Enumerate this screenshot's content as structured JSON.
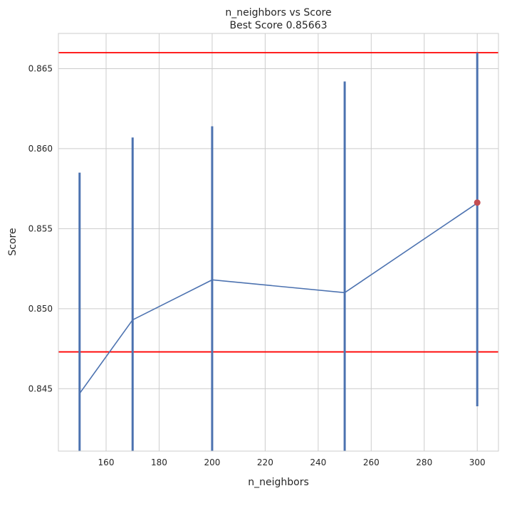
{
  "chart_data": {
    "type": "line",
    "title": "n_neighbors vs Score",
    "subtitle": "Best Score 0.85663",
    "xlabel": "n_neighbors",
    "ylabel": "Score",
    "xlim": [
      142,
      308
    ],
    "ylim": [
      0.8411,
      0.8672
    ],
    "x_ticks": [
      160,
      180,
      200,
      220,
      240,
      260,
      280,
      300
    ],
    "y_ticks": [
      0.845,
      0.85,
      0.855,
      0.86,
      0.865
    ],
    "y_tick_labels": [
      "0.845",
      "0.850",
      "0.855",
      "0.860",
      "0.865"
    ],
    "grid": true,
    "series": [
      {
        "x": [
          150,
          170,
          200,
          250,
          300
        ],
        "y": [
          0.8447,
          0.8493,
          0.8518,
          0.851,
          0.8566
        ],
        "color": "#4C72B0",
        "error_range": [
          [
            0.8411,
            0.8585
          ],
          [
            0.8411,
            0.8607
          ],
          [
            0.8411,
            0.8614
          ],
          [
            0.8411,
            0.8642
          ],
          [
            0.8439,
            0.866
          ]
        ]
      }
    ],
    "best_point": {
      "x": 300,
      "y": 0.85663,
      "color": "#C44E52"
    },
    "hlines": [
      {
        "y": 0.866,
        "color": "#ff0000"
      },
      {
        "y": 0.8473,
        "color": "#ff0000"
      }
    ],
    "colors": {
      "grid": "#cccccc",
      "axes_edge": "#cccccc",
      "text": "#262626"
    }
  }
}
